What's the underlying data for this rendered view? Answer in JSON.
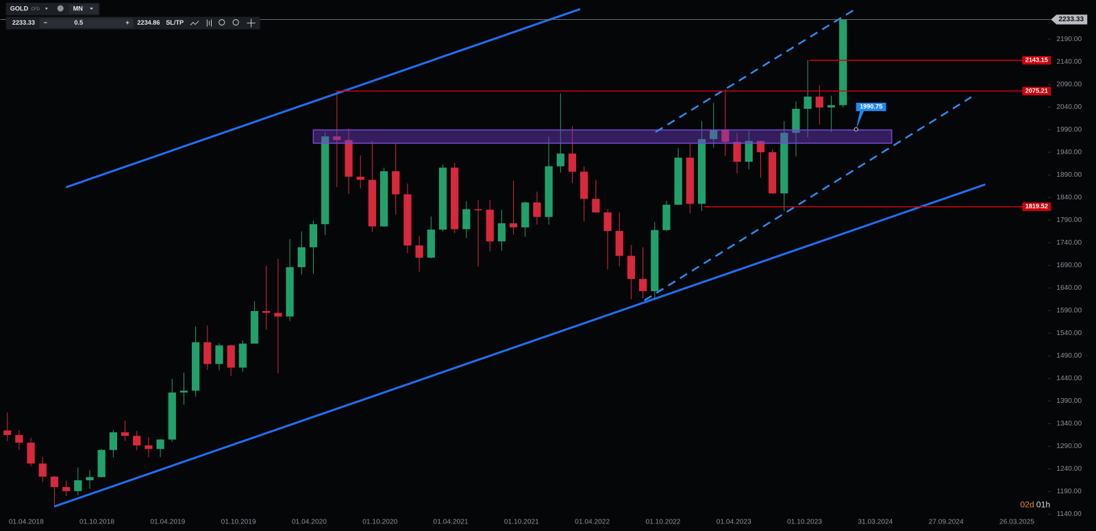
{
  "toolbar": {
    "symbol": "GOLD",
    "market": "CFD",
    "timeframe": "MN",
    "bid": "2233.33",
    "lot": "0.5",
    "ask": "2234.86",
    "sltp": "SL/TP"
  },
  "countdown": {
    "days": "02d",
    "hours": "01h"
  },
  "chart_data": {
    "type": "candlestick",
    "up_color": "#22a06b",
    "down_color": "#d8283c",
    "ylim": [
      1126,
      2276.5
    ],
    "yticks": [
      {
        "value": 1140,
        "label": "1140.00"
      },
      {
        "value": 1190,
        "label": "1190.00"
      },
      {
        "value": 1240,
        "label": "1240.00"
      },
      {
        "value": 1290,
        "label": "1290.00"
      },
      {
        "value": 1340,
        "label": "1340.00"
      },
      {
        "value": 1390,
        "label": "1390.00"
      },
      {
        "value": 1440,
        "label": "1440.00"
      },
      {
        "value": 1490,
        "label": "1490.00"
      },
      {
        "value": 1540,
        "label": "1540.00"
      },
      {
        "value": 1590,
        "label": "1590.00"
      },
      {
        "value": 1640,
        "label": "1640.00"
      },
      {
        "value": 1690,
        "label": "1690.00"
      },
      {
        "value": 1740,
        "label": "1740.00"
      },
      {
        "value": 1790,
        "label": "1790.00"
      },
      {
        "value": 1840,
        "label": "1840.00"
      },
      {
        "value": 1890,
        "label": "1890.00"
      },
      {
        "value": 1940,
        "label": "1940.00"
      },
      {
        "value": 1990,
        "label": "1990.00"
      },
      {
        "value": 2040,
        "label": "2040.00"
      },
      {
        "value": 2090,
        "label": "2090.00"
      },
      {
        "value": 2140,
        "label": "2140.00"
      },
      {
        "value": 2190,
        "label": "2190.00"
      }
    ],
    "xticks": [
      "01.04.2018",
      "01.10.2018",
      "01.04.2019",
      "01.10.2019",
      "01.04.2020",
      "01.10.2020",
      "01.04.2021",
      "01.10.2021",
      "01.04.2022",
      "01.10.2022",
      "01.04.2023",
      "01.10.2023",
      "31.03.2024",
      "27.09.2024",
      "26.03.2025"
    ],
    "open": [
      1325,
      1315,
      1298,
      1252,
      1223,
      1200,
      1191,
      1215,
      1222,
      1282,
      1321,
      1313,
      1292,
      1284,
      1305,
      1409,
      1413,
      1520,
      1472,
      1513,
      1464,
      1517,
      1589,
      1585,
      1577,
      1686,
      1730,
      1781,
      1975,
      1967,
      1886,
      1879,
      1776,
      1898,
      1847,
      1734,
      1707,
      1769,
      1906,
      1770,
      1814,
      1813,
      1743,
      1783,
      1774,
      1829,
      1797,
      1909,
      1937,
      1897,
      1837,
      1807,
      1766,
      1711,
      1660,
      1633,
      1768,
      1824,
      1928,
      1826,
      1969,
      1990,
      1963,
      1919,
      1965,
      1940,
      1849,
      1983,
      2036,
      2063,
      2039,
      2044
    ],
    "high": [
      1365,
      1326,
      1309,
      1266,
      1225,
      1214,
      1243,
      1237,
      1284,
      1326,
      1347,
      1324,
      1310,
      1306,
      1439,
      1453,
      1555,
      1557,
      1518,
      1515,
      1524,
      1611,
      1689,
      1704,
      1748,
      1765,
      1789,
      1984,
      2075,
      1992,
      1933,
      1965,
      1906,
      1959,
      1871,
      1755,
      1798,
      1913,
      1916,
      1832,
      1834,
      1834,
      1813,
      1877,
      1831,
      1853,
      1974,
      2070,
      1998,
      1909,
      1879,
      1814,
      1807,
      1735,
      1730,
      1786,
      1833,
      1949,
      1960,
      2009,
      2049,
      2079,
      1983,
      1987,
      1966,
      1947,
      2009,
      2052,
      2144,
      2088,
      2065,
      2234
    ],
    "low": [
      1302,
      1282,
      1246,
      1211,
      1160,
      1180,
      1182,
      1196,
      1221,
      1266,
      1302,
      1281,
      1266,
      1266,
      1300,
      1382,
      1400,
      1459,
      1458,
      1445,
      1455,
      1517,
      1548,
      1451,
      1567,
      1670,
      1671,
      1757,
      1863,
      1848,
      1860,
      1764,
      1775,
      1802,
      1717,
      1676,
      1705,
      1765,
      1761,
      1750,
      1687,
      1721,
      1722,
      1758,
      1753,
      1780,
      1780,
      1895,
      1872,
      1787,
      1806,
      1681,
      1688,
      1615,
      1617,
      1616,
      1765,
      1823,
      1805,
      1810,
      1950,
      1932,
      1893,
      1902,
      1884,
      1848,
      1810,
      1931,
      1973,
      2001,
      1985,
      2039
    ],
    "close": [
      1315,
      1298,
      1252,
      1223,
      1200,
      1191,
      1215,
      1222,
      1282,
      1321,
      1313,
      1292,
      1284,
      1305,
      1409,
      1413,
      1520,
      1472,
      1513,
      1464,
      1517,
      1589,
      1585,
      1577,
      1686,
      1730,
      1781,
      1975,
      1967,
      1886,
      1879,
      1776,
      1898,
      1847,
      1734,
      1707,
      1769,
      1906,
      1770,
      1814,
      1813,
      1743,
      1783,
      1774,
      1829,
      1797,
      1909,
      1937,
      1897,
      1837,
      1807,
      1766,
      1711,
      1660,
      1633,
      1768,
      1824,
      1928,
      1826,
      1969,
      1990,
      1963,
      1919,
      1965,
      1940,
      1849,
      1983,
      2036,
      2063,
      2039,
      2044,
      2233.33
    ],
    "levels": [
      2143.15,
      2075.21,
      1819.52
    ],
    "level_color": "#d0000d",
    "current_price": 2233.33,
    "marker": 1990.75
  }
}
